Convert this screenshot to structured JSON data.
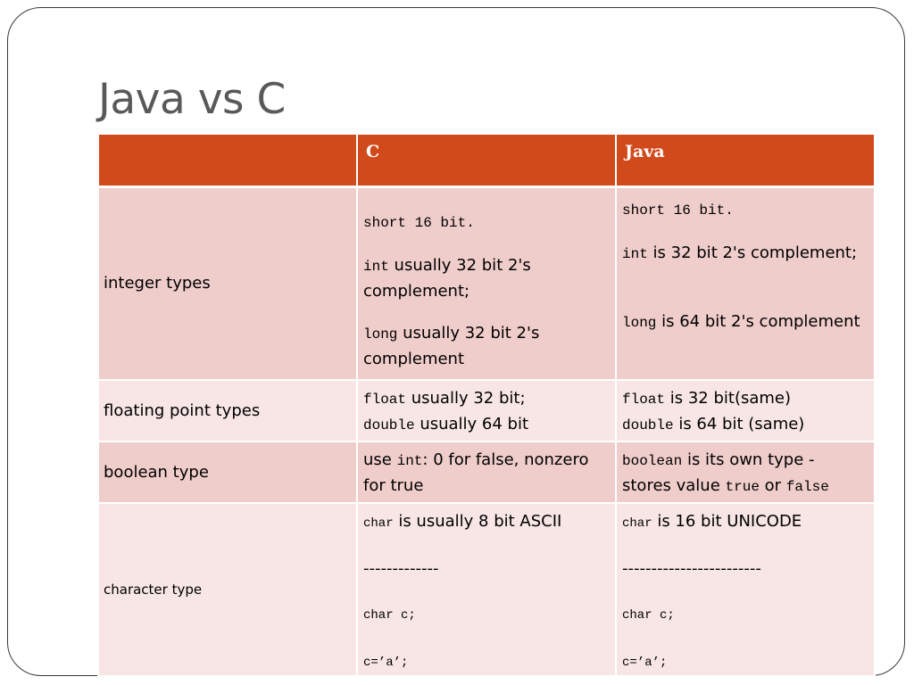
{
  "title": "Java vs C",
  "headers": {
    "feature": "",
    "c": "C",
    "java": "Java"
  },
  "rows": {
    "integer": {
      "label": "integer types",
      "c": {
        "short_code": "short 16 bit.",
        "int_code": "int",
        "int_text": " usually 32 bit 2's complement;",
        "long_code": "long",
        "long_text": " usually 32 bit 2's complement"
      },
      "java": {
        "short_code": "short 16 bit.",
        "int_code": "int",
        "int_text": " is 32 bit 2's complement;",
        "long_code": "long",
        "long_text": " is 64 bit 2's complement"
      }
    },
    "floating": {
      "label": "floating point types",
      "c": {
        "float_code": "float",
        "float_text": " usually 32 bit;",
        "double_code": "double",
        "double_text": " usually 64 bit"
      },
      "java": {
        "float_code": "float",
        "float_text": " is 32 bit(same)",
        "double_code": "double",
        "double_text": " is 64 bit (same)"
      }
    },
    "boolean": {
      "label": "boolean type",
      "c": {
        "pre": "use ",
        "int_code": "int",
        "post": ": 0 for false, nonzero for true"
      },
      "java": {
        "boolean_code": "boolean",
        "text1": " is its own type - stores value ",
        "true_code": "true",
        "or_text": " or ",
        "false_code": "false"
      }
    },
    "character": {
      "label": "character type",
      "c": {
        "char_code": "char",
        "char_text": " is usually 8 bit ASCII",
        "dashes": "-------------",
        "decl": "char c;",
        "assign": "c=’a’;"
      },
      "java": {
        "char_code": "char",
        "char_text": " is 16 bit UNICODE",
        "dashes": "------------------------",
        "decl": "char c;",
        "assign": "c=’a’;"
      }
    }
  }
}
